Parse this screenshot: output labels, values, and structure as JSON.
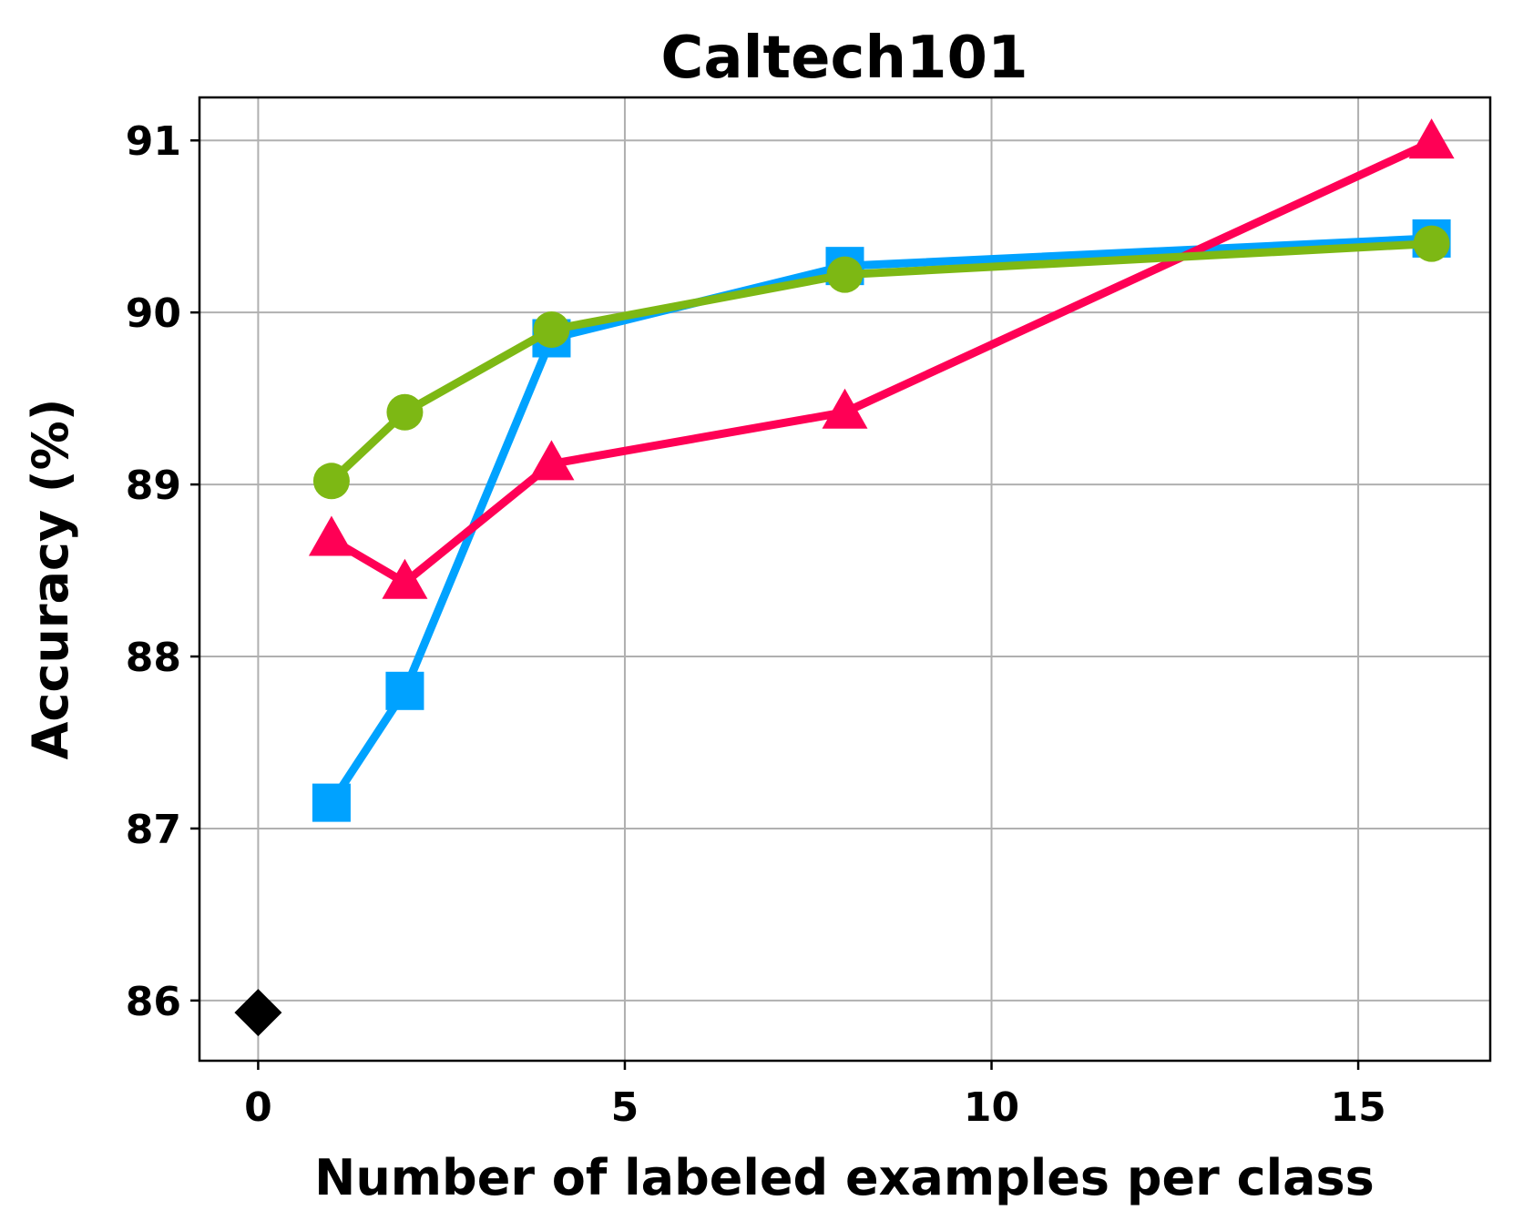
{
  "chart_data": {
    "type": "line",
    "title": "Caltech101",
    "xlabel": "Number of labeled examples per class",
    "ylabel": "Accuracy (%)",
    "xlim": [
      -0.8,
      16.8
    ],
    "ylim": [
      85.65,
      91.25
    ],
    "xticks": [
      0,
      5,
      10,
      15
    ],
    "yticks": [
      86,
      87,
      88,
      89,
      90,
      91
    ],
    "grid": true,
    "series": [
      {
        "color": "#00a2ff",
        "marker": "square",
        "x": [
          1,
          2,
          4,
          8,
          16
        ],
        "y": [
          87.15,
          87.8,
          89.85,
          90.27,
          90.43
        ]
      },
      {
        "color": "#ff0055",
        "marker": "triangle",
        "x": [
          1,
          2,
          4,
          8,
          16
        ],
        "y": [
          88.68,
          88.43,
          89.12,
          89.42,
          90.99
        ]
      },
      {
        "color": "#7db814",
        "marker": "circle",
        "x": [
          1,
          2,
          4,
          8,
          16
        ],
        "y": [
          89.02,
          89.42,
          89.9,
          90.22,
          90.4
        ]
      },
      {
        "color": "#000000",
        "marker": "diamond",
        "x": [
          0
        ],
        "y": [
          85.93
        ]
      }
    ]
  }
}
